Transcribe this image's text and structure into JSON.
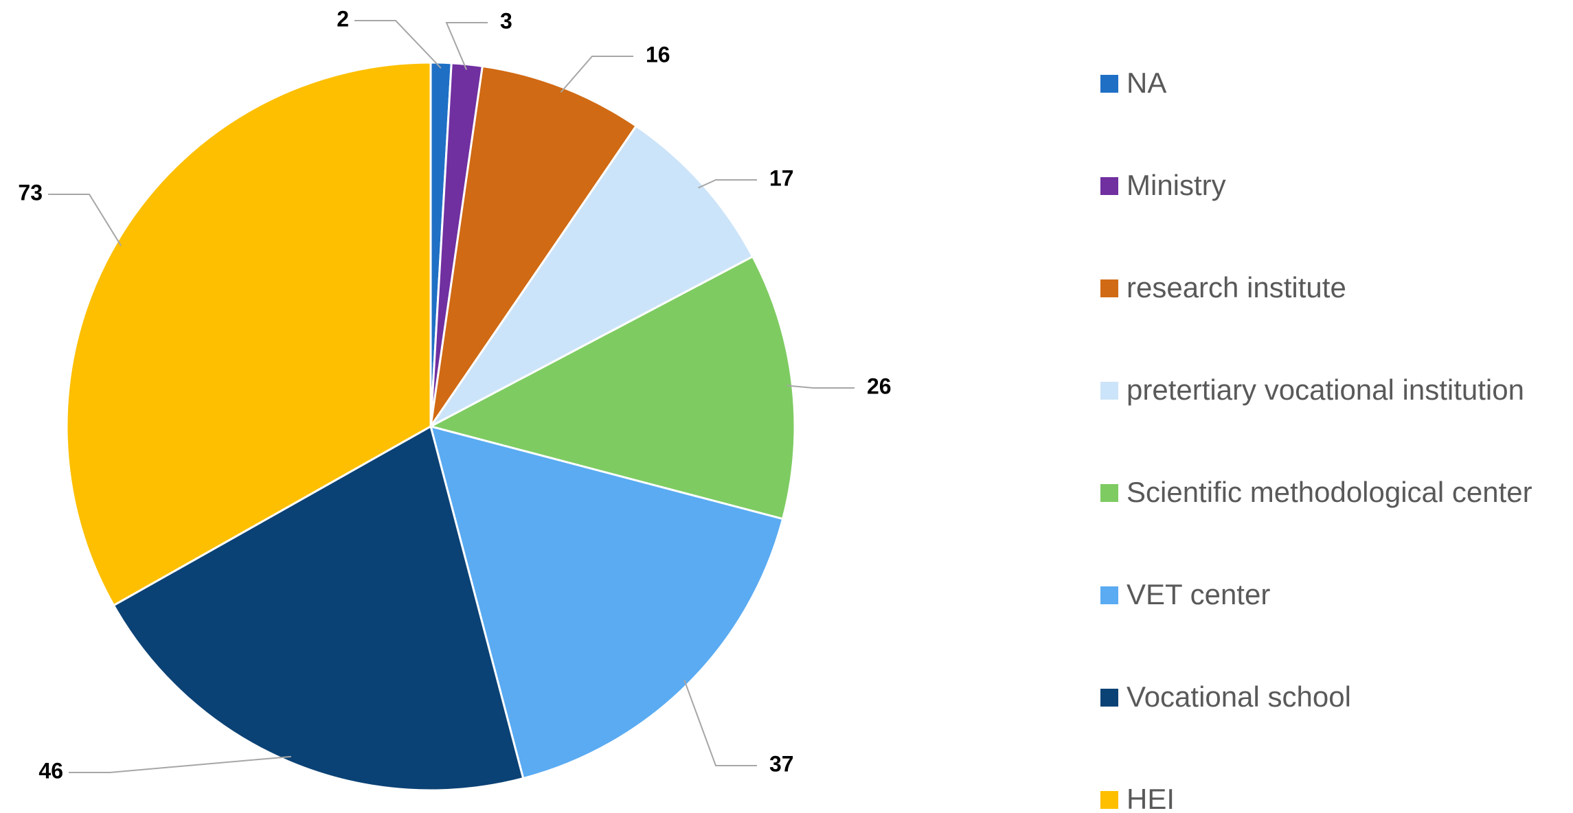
{
  "chart_data": {
    "type": "pie",
    "categories": [
      "NA",
      "Ministry",
      "research institute",
      "pretertiary vocational institution",
      "Scientific methodological center",
      "VET center",
      "Vocational school",
      "HEI"
    ],
    "values": [
      2,
      3,
      16,
      17,
      26,
      37,
      46,
      73
    ],
    "colors": [
      "#1f6fc5",
      "#7030a0",
      "#d06a14",
      "#cce4f9",
      "#7ecb62",
      "#5aabf2",
      "#0b4275",
      "#fdbf00"
    ],
    "legend": "right"
  }
}
